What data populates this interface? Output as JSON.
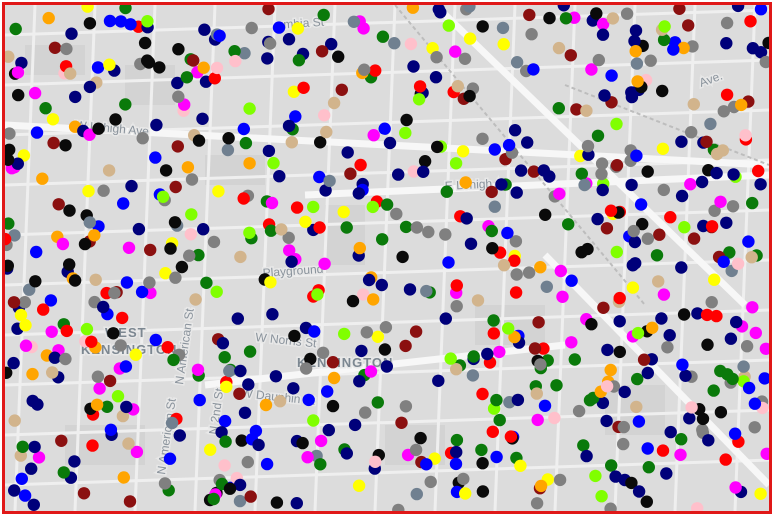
{
  "map": {
    "labels": {
      "columbia_ave_top": "umbia St",
      "w_lehigh_ave": "W Lehigh Ave",
      "e_lehigh_ave": "E Lehigh Av",
      "ave_top_right": "Ave.",
      "playground": "Playground",
      "west": "WEST",
      "west_kensington": "KENSINGTON",
      "kensington": "KENSINGTON",
      "n_american_st_a": "N American St",
      "n_american_st_b": "N American St",
      "n_2nd_st": "N 2nd St",
      "w_dauphin_st": "W Dauphin St",
      "w_norris_st": "W Norris St"
    },
    "marker_colors": {
      "navy": "#00007a",
      "black": "#0a0a0a",
      "green": "#0a7a0a",
      "red": "#ff0000",
      "gray": "#808080",
      "darkred": "#8b1010",
      "magenta": "#ff00ff",
      "blue": "#0000ff",
      "pink": "#ffc0cb",
      "orange": "#ffa500",
      "slate": "#708090",
      "yellow": "#ffff00",
      "lime": "#80ff00",
      "tan": "#d2b48c"
    }
  }
}
